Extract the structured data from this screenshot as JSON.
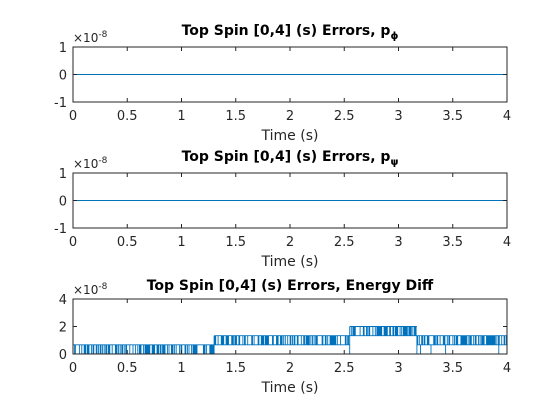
{
  "chart_data": [
    {
      "type": "line",
      "title": "Top Spin [0,4] (s) Errors, p",
      "title_subscript": "ϕ",
      "xlabel": "Time (s)",
      "ylabel": "",
      "xlim": [
        0,
        4
      ],
      "ylim": [
        -1,
        1
      ],
      "x_ticks": [
        "0",
        "0.5",
        "1",
        "1.5",
        "2",
        "2.5",
        "3",
        "3.5",
        "4"
      ],
      "y_ticks": [
        "-1",
        "0",
        "1"
      ],
      "y_multiplier_base": "×10",
      "y_multiplier_exponent": "-8",
      "grid": false,
      "series": [
        {
          "color": "#0072BD",
          "x": [
            0,
            4
          ],
          "y": [
            0,
            0
          ]
        }
      ]
    },
    {
      "type": "line",
      "title": "Top Spin [0,4] (s) Errors, p",
      "title_subscript": "ψ",
      "xlabel": "Time (s)",
      "ylabel": "",
      "xlim": [
        0,
        4
      ],
      "ylim": [
        -1,
        1
      ],
      "x_ticks": [
        "0",
        "0.5",
        "1",
        "1.5",
        "2",
        "2.5",
        "3",
        "3.5",
        "4"
      ],
      "y_ticks": [
        "-1",
        "0",
        "1"
      ],
      "y_multiplier_base": "×10",
      "y_multiplier_exponent": "-8",
      "grid": false,
      "series": [
        {
          "color": "#0072BD",
          "x": [
            0,
            4
          ],
          "y": [
            0,
            0
          ]
        }
      ]
    },
    {
      "type": "line",
      "title": "Top Spin [0,4] (s) Errors, Energy Diff",
      "title_subscript": "",
      "xlabel": "Time (s)",
      "ylabel": "",
      "xlim": [
        0,
        4
      ],
      "ylim": [
        0,
        4
      ],
      "x_ticks": [
        "0",
        "0.5",
        "1",
        "1.5",
        "2",
        "2.5",
        "3",
        "3.5",
        "4"
      ],
      "y_ticks": [
        "0",
        "2",
        "4"
      ],
      "y_multiplier_base": "×10",
      "y_multiplier_exponent": "-8",
      "grid": false,
      "series": [
        {
          "color": "#0072BD",
          "style": "step-noise",
          "segments": [
            {
              "x_start": 0.0,
              "x_end": 1.3,
              "low": 0.0,
              "high": 0.67
            },
            {
              "x_start": 1.3,
              "x_end": 2.55,
              "low": 0.67,
              "high": 1.33
            },
            {
              "x_start": 2.55,
              "x_end": 3.17,
              "low": 1.33,
              "high": 2.0
            },
            {
              "x_start": 3.17,
              "x_end": 4.0,
              "low": 0.67,
              "high": 1.33
            }
          ]
        }
      ]
    }
  ]
}
